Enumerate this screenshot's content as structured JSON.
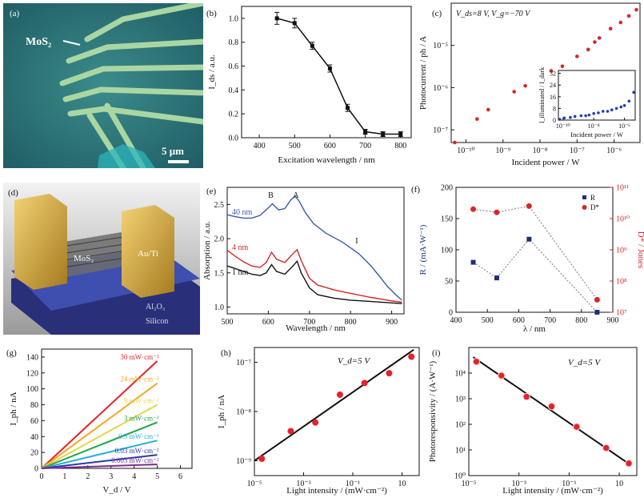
{
  "panel_labels": [
    "(a)",
    "(b)",
    "(c)",
    "(d)",
    "(e)",
    "(f)",
    "(g)",
    "(h)",
    "(i)"
  ],
  "photo_a": {
    "label": "MoS₂",
    "scalebar": "5 μm"
  },
  "render_d": {
    "labels": [
      "MoS₂",
      "Au/Ti",
      "Al₂O₃",
      "Silicon"
    ]
  },
  "colors": {
    "black": "#111111",
    "red": "#d62728",
    "blue": "#3b5ba5",
    "navy": "#1f2f7a"
  },
  "chart_data": [
    {
      "id": "b",
      "type": "line",
      "xlabel": "Excitation wavelength / nm",
      "ylabel": "I_ds / a.u.",
      "xlim": [
        350,
        830
      ],
      "ylim": [
        0,
        1.1
      ],
      "xticks": [
        400,
        500,
        600,
        700,
        800
      ],
      "yticks": [
        0,
        0.2,
        0.4,
        0.6,
        0.8,
        1.0
      ],
      "x": [
        450,
        500,
        550,
        600,
        650,
        700,
        750,
        800
      ],
      "y": [
        1.0,
        0.96,
        0.77,
        0.58,
        0.25,
        0.05,
        0.03,
        0.03
      ],
      "err": [
        0.05,
        0.04,
        0.03,
        0.03,
        0.03,
        0.02,
        0.02,
        0.02
      ]
    },
    {
      "id": "c",
      "type": "scatter",
      "xscale": "log",
      "yscale": "log",
      "xlabel": "Incident power / W",
      "ylabel": "Photocurrent / ph / A",
      "annotation": "V_ds=8 V, V_g=−70 V",
      "xlim": [
        4e-11,
        5e-06
      ],
      "ylim": [
        5e-08,
        0.0001
      ],
      "xticks": [
        {
          "v": 1e-10,
          "t": "10⁻¹⁰"
        },
        {
          "v": 1e-09,
          "t": "10⁻⁹"
        },
        {
          "v": 1e-08,
          "t": "10⁻⁸"
        },
        {
          "v": 1e-07,
          "t": "10⁻⁷"
        },
        {
          "v": 1e-06,
          "t": "10⁻⁶"
        }
      ],
      "yticks": [
        {
          "v": 1e-07,
          "t": "10⁻⁷"
        },
        {
          "v": 1e-06,
          "t": "10⁻⁶"
        },
        {
          "v": 1e-05,
          "t": "10⁻⁵"
        }
      ],
      "x": [
        5e-11,
        2e-10,
        4e-10,
        2e-09,
        4e-09,
        2e-08,
        4e-08,
        1e-07,
        2e-07,
        3e-07,
        4e-07,
        8e-07,
        1.5e-06,
        2.5e-06,
        4e-06
      ],
      "y": [
        5e-08,
        1.8e-07,
        3e-07,
        8e-07,
        1.1e-06,
        2.5e-06,
        3.2e-06,
        5.5e-06,
        8e-06,
        1.2e-05,
        1.5e-05,
        2.5e-05,
        3.5e-05,
        5e-05,
        7e-05
      ],
      "inset": {
        "xlabel": "Incident power / W",
        "ylabel": "I_illuminated / I_dark",
        "xlim": [
          5e-11,
          5e-06
        ],
        "ylim": [
          0,
          34
        ],
        "xticks": [
          {
            "v": 1e-10,
            "t": "10⁻¹⁰"
          },
          {
            "v": 1e-08,
            "t": "10⁻⁸"
          },
          {
            "v": 1e-06,
            "t": "10⁻⁶"
          }
        ],
        "yticks": [
          0,
          8,
          16,
          24,
          32
        ],
        "x": [
          6e-11,
          1.2e-10,
          3e-10,
          6e-10,
          1.5e-09,
          3e-09,
          5e-09,
          1e-08,
          2e-08,
          4e-08,
          8e-08,
          1.5e-07,
          3e-07,
          6e-07,
          1e-06,
          2e-06,
          4e-06
        ],
        "y": [
          0.5,
          1.5,
          1.8,
          2.5,
          3,
          3,
          3.5,
          4.5,
          5,
          6,
          6,
          7,
          8,
          9,
          10,
          13,
          19
        ]
      }
    },
    {
      "id": "e",
      "type": "line",
      "xlabel": "Wavelength / nm",
      "ylabel": "Absorption / a.u.",
      "xlim": [
        500,
        930
      ],
      "ylim": [
        0.9,
        2.75
      ],
      "xticks": [
        500,
        600,
        700,
        800,
        900
      ],
      "yticks": [
        1.0,
        1.5,
        2.0,
        2.5
      ],
      "peak_labels": [
        "B",
        "A",
        "I"
      ],
      "series": [
        {
          "name": "40 nm",
          "color": "#3b5ba5",
          "x": [
            500,
            520,
            540,
            560,
            580,
            600,
            610,
            625,
            640,
            655,
            665,
            675,
            690,
            710,
            740,
            780,
            820,
            850,
            870,
            890,
            910,
            925
          ],
          "y": [
            2.35,
            2.32,
            2.3,
            2.3,
            2.34,
            2.45,
            2.51,
            2.42,
            2.44,
            2.57,
            2.62,
            2.55,
            2.38,
            2.22,
            2.08,
            1.95,
            1.78,
            1.6,
            1.45,
            1.3,
            1.18,
            1.1
          ]
        },
        {
          "name": "4 nm",
          "color": "#d62728",
          "x": [
            500,
            520,
            540,
            560,
            580,
            595,
            608,
            620,
            640,
            660,
            670,
            680,
            700,
            720,
            760,
            800,
            850,
            900,
            925
          ],
          "y": [
            1.83,
            1.74,
            1.66,
            1.6,
            1.58,
            1.65,
            1.8,
            1.7,
            1.65,
            1.78,
            1.84,
            1.68,
            1.42,
            1.32,
            1.25,
            1.2,
            1.14,
            1.09,
            1.07
          ]
        },
        {
          "name": "1 nm",
          "color": "#111111",
          "x": [
            500,
            520,
            540,
            560,
            580,
            595,
            608,
            620,
            640,
            660,
            670,
            680,
            700,
            720,
            760,
            800,
            850,
            900,
            925
          ],
          "y": [
            1.6,
            1.56,
            1.52,
            1.48,
            1.46,
            1.5,
            1.62,
            1.52,
            1.48,
            1.6,
            1.67,
            1.5,
            1.28,
            1.18,
            1.13,
            1.1,
            1.08,
            1.06,
            1.05
          ]
        }
      ]
    },
    {
      "id": "f",
      "type": "scatter",
      "xlabel": "λ / nm",
      "ylabel": "R / (mA·W⁻¹)",
      "y2label": "D* / Jones",
      "xlim": [
        400,
        900
      ],
      "ylim": [
        0,
        200
      ],
      "xticks": [
        400,
        500,
        600,
        700,
        800,
        900
      ],
      "yticks": [
        0,
        50,
        100,
        150,
        200
      ],
      "y2ticks": [
        {
          "v": 7,
          "t": "10⁷"
        },
        {
          "v": 8,
          "t": "10⁸"
        },
        {
          "v": 9,
          "t": "10⁹"
        },
        {
          "v": 10,
          "t": "10¹⁰"
        },
        {
          "v": 11,
          "t": "10¹¹"
        }
      ],
      "y2lim": [
        7,
        11
      ],
      "series": [
        {
          "name": "R",
          "color": "#1f2f7a",
          "x": [
            455,
            530,
            633,
            850
          ],
          "y": [
            80,
            55,
            117,
            0
          ]
        },
        {
          "name": "D*",
          "color": "#d62728",
          "x": [
            455,
            530,
            633,
            850
          ],
          "y": [
            10.3,
            10.2,
            10.4,
            7.4
          ]
        }
      ]
    },
    {
      "id": "g",
      "type": "line",
      "xlabel": "V_d / V",
      "ylabel": "I_ph / nA",
      "xlim": [
        0,
        6.5
      ],
      "ylim": [
        0,
        150
      ],
      "xticks": [
        0,
        1,
        2,
        3,
        4,
        5,
        6
      ],
      "yticks": [
        0,
        20,
        40,
        60,
        80,
        100,
        120,
        140
      ],
      "series": [
        {
          "name": "30 mW·cm⁻²",
          "color": "#e8212a",
          "x": [
            0,
            5
          ],
          "y": [
            0,
            135
          ]
        },
        {
          "name": "24 mW·cm⁻²",
          "color": "#f5a623",
          "x": [
            0,
            5
          ],
          "y": [
            0,
            107
          ]
        },
        {
          "name": "9 mW·cm⁻²",
          "color": "#e5d54a",
          "x": [
            0,
            5
          ],
          "y": [
            0,
            80
          ]
        },
        {
          "name": "3 mW·cm⁻²",
          "color": "#1fa34a",
          "x": [
            0,
            5
          ],
          "y": [
            0,
            58
          ]
        },
        {
          "name": "0.3 mW·cm⁻²",
          "color": "#27aedc",
          "x": [
            0,
            5
          ],
          "y": [
            0,
            35
          ]
        },
        {
          "name": "0.03 mW·cm⁻²",
          "color": "#2b3aa8",
          "x": [
            0,
            5
          ],
          "y": [
            0,
            17
          ]
        },
        {
          "name": "0.003 mW·cm⁻²",
          "color": "#7b2d8e",
          "x": [
            0,
            5
          ],
          "y": [
            0,
            5
          ]
        }
      ]
    },
    {
      "id": "h",
      "type": "scatter",
      "xscale": "log",
      "yscale": "log",
      "xlabel": "Light intensity / (mW·cm⁻²)",
      "ylabel": "I_ph / nA",
      "annotation": "V_d=5 V",
      "xlim": [
        1e-05,
        50
      ],
      "ylim": [
        5e-10,
        2e-07
      ],
      "xticks": [
        {
          "v": 1e-05,
          "t": "10⁻⁵"
        },
        {
          "v": 0.001,
          "t": "10⁻³"
        },
        {
          "v": 0.1,
          "t": "10⁻¹"
        },
        {
          "v": 10,
          "t": "10"
        }
      ],
      "yticks": [
        {
          "v": 1e-09,
          "t": "10⁻⁹"
        },
        {
          "v": 1e-08,
          "t": "10⁻⁸"
        },
        {
          "v": 1e-07,
          "t": "10⁻⁷"
        }
      ],
      "x": [
        2e-05,
        0.0003,
        0.003,
        0.03,
        0.3,
        3,
        24
      ],
      "y": [
        1.1e-09,
        4e-09,
        6e-09,
        2.2e-08,
        3.8e-08,
        6e-08,
        1.3e-07
      ],
      "fit": {
        "x": [
          1e-05,
          30
        ],
        "y": [
          1e-09,
          1.8e-07
        ]
      }
    },
    {
      "id": "i",
      "type": "scatter",
      "xscale": "log",
      "yscale": "log",
      "xlabel": "Light intensity / (mW·cm⁻²)",
      "ylabel": "Photoresponsivity / (A·W⁻¹)",
      "annotation": "V_d=5 V",
      "xlim": [
        1e-05,
        50
      ],
      "ylim": [
        1,
        100000.0
      ],
      "xticks": [
        {
          "v": 1e-05,
          "t": "10⁻⁵"
        },
        {
          "v": 0.001,
          "t": "10⁻³"
        },
        {
          "v": 0.1,
          "t": "10⁻¹"
        },
        {
          "v": 10,
          "t": "10"
        }
      ],
      "yticks": [
        {
          "v": 1,
          "t": "10⁰"
        },
        {
          "v": 10,
          "t": "10¹"
        },
        {
          "v": 100,
          "t": "10²"
        },
        {
          "v": 1000,
          "t": "10³"
        },
        {
          "v": 10000,
          "t": "10⁴"
        }
      ],
      "x": [
        2e-05,
        0.0002,
        0.002,
        0.02,
        0.2,
        3,
        24
      ],
      "y": [
        28000,
        8000,
        1200,
        500,
        80,
        12,
        3
      ],
      "fit": {
        "x": [
          1.5e-05,
          30
        ],
        "y": [
          42000,
          2.5
        ]
      }
    }
  ]
}
